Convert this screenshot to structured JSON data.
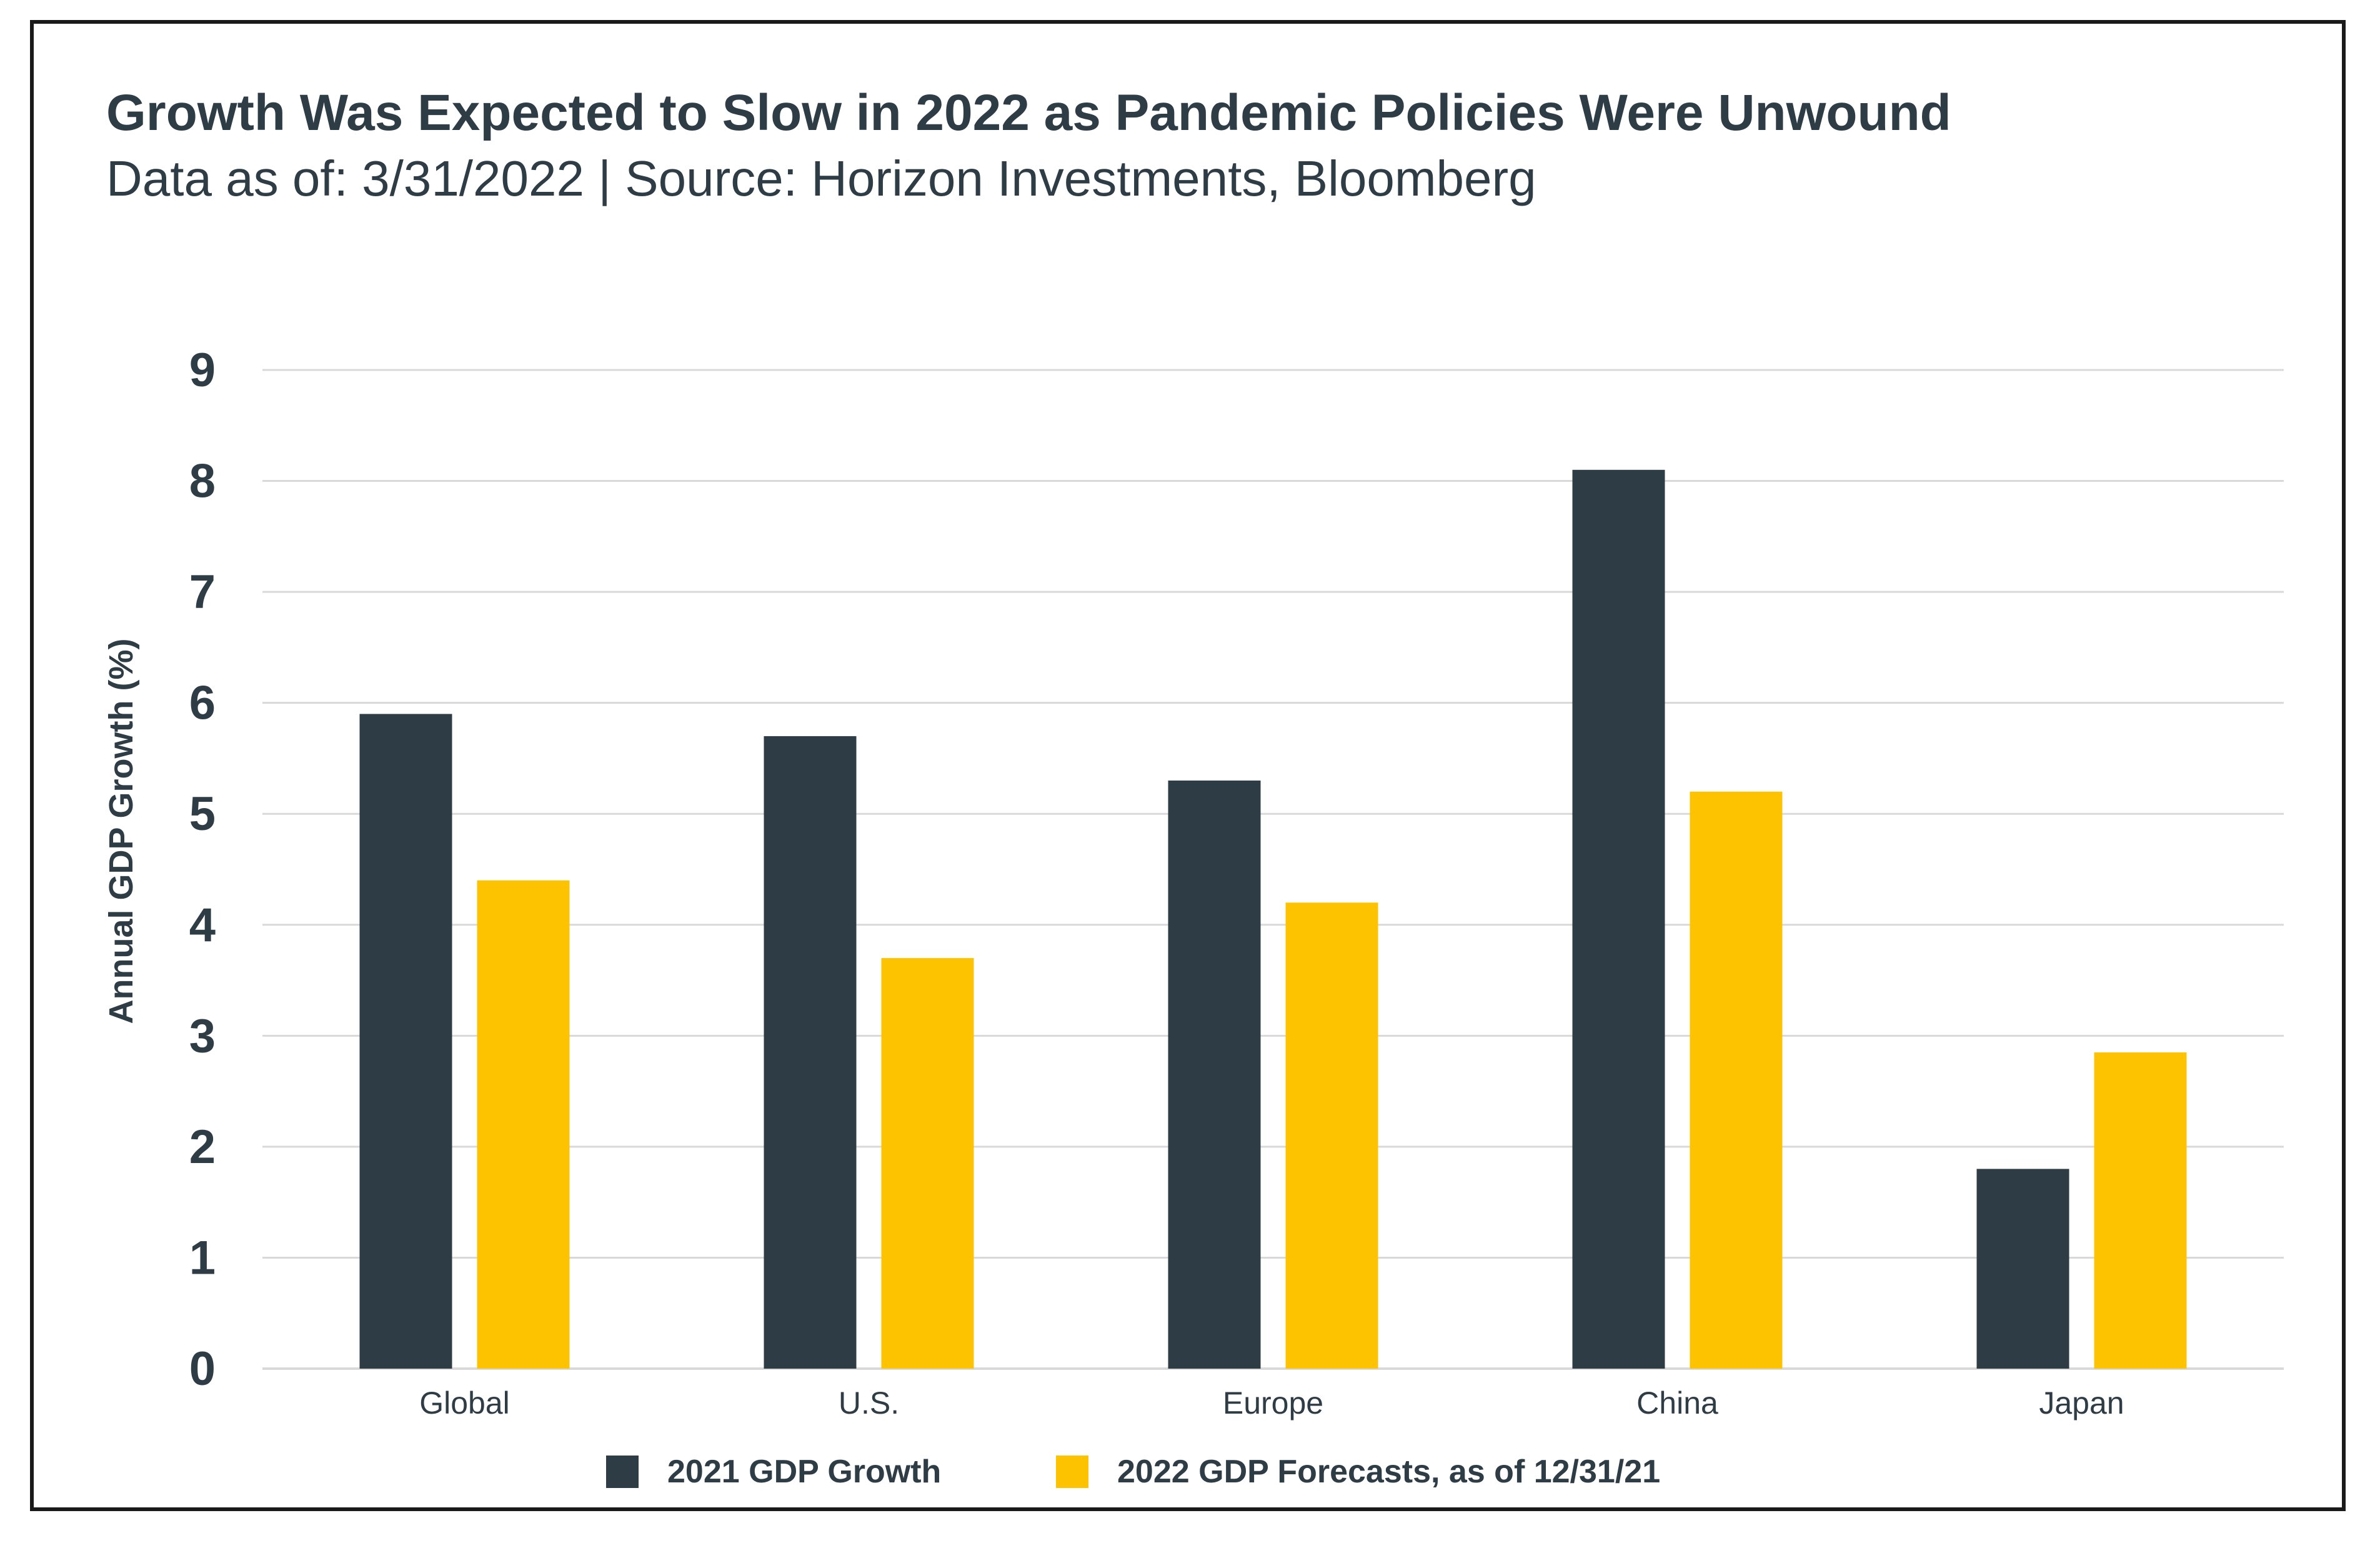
{
  "colors": {
    "series_2021": "#2e3c46",
    "series_2022": "#fec300",
    "grid": "#d9d9d9",
    "text": "#2e3c46"
  },
  "chart_data": {
    "type": "bar",
    "title": "Growth Was Expected to Slow in 2022 as Pandemic Policies Were Unwound",
    "subtitle": "Data as of: 3/31/2022 | Source: Horizon Investments, Bloomberg",
    "ylabel": "Annual GDP Growth (%)",
    "xlabel": "",
    "ylim": [
      0,
      9
    ],
    "yticks": [
      0,
      1,
      2,
      3,
      4,
      5,
      6,
      7,
      8,
      9
    ],
    "grid": true,
    "legend_position": "bottom",
    "categories": [
      "Global",
      "U.S.",
      "Europe",
      "China",
      "Japan"
    ],
    "series": [
      {
        "name": "2021 GDP Growth",
        "values": [
          5.9,
          5.7,
          5.3,
          8.1,
          1.8
        ]
      },
      {
        "name": "2022 GDP Forecasts, as of 12/31/21",
        "values": [
          4.4,
          3.7,
          4.2,
          5.2,
          2.85
        ]
      }
    ]
  }
}
